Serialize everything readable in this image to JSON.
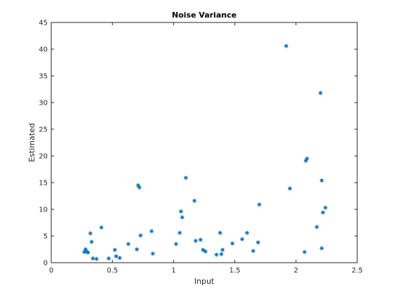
{
  "chart_data": {
    "type": "scatter",
    "title": "Noise Variance",
    "xlabel": "Input",
    "ylabel": "Estimated",
    "xlim": [
      0,
      2.5
    ],
    "ylim": [
      0,
      45
    ],
    "xticks": [
      0,
      0.5,
      1,
      1.5,
      2,
      2.5
    ],
    "xtick_labels": [
      "0",
      "0.5",
      "1",
      "1.5",
      "2",
      "2.5"
    ],
    "yticks": [
      0,
      5,
      10,
      15,
      20,
      25,
      30,
      35,
      40,
      45
    ],
    "ytick_labels": [
      "0",
      "5",
      "10",
      "15",
      "20",
      "25",
      "30",
      "35",
      "40",
      "45"
    ],
    "grid": false,
    "legend": "none",
    "marker": "asterisk",
    "color": "#0072BD",
    "series": [
      {
        "x": [
          0.27,
          0.28,
          0.29,
          0.3,
          0.32,
          0.33,
          0.34,
          0.37,
          0.41,
          0.47,
          0.52,
          0.53,
          0.56,
          0.63,
          0.7,
          0.71,
          0.72,
          0.73,
          0.82,
          0.83,
          1.02,
          1.05,
          1.06,
          1.07,
          1.1,
          1.17,
          1.18,
          1.22,
          1.24,
          1.26,
          1.35,
          1.38,
          1.39,
          1.4,
          1.48,
          1.56,
          1.6,
          1.65,
          1.69,
          1.7,
          1.92,
          1.95,
          2.07,
          2.08,
          2.09,
          2.17,
          2.2,
          2.21,
          2.21,
          2.22,
          2.24
        ],
        "y": [
          2.0,
          2.5,
          2.1,
          1.9,
          5.5,
          3.9,
          0.8,
          0.7,
          6.6,
          0.8,
          2.4,
          1.2,
          0.9,
          3.5,
          2.5,
          14.5,
          14.1,
          5.1,
          5.9,
          1.7,
          3.5,
          5.6,
          9.6,
          8.5,
          15.9,
          11.6,
          4.1,
          4.3,
          2.4,
          2.1,
          1.5,
          5.6,
          1.6,
          2.4,
          3.6,
          4.4,
          5.6,
          2.2,
          3.8,
          10.9,
          40.6,
          13.9,
          2.0,
          19.1,
          19.5,
          6.7,
          31.8,
          2.7,
          15.4,
          9.4,
          10.3
        ]
      }
    ]
  }
}
